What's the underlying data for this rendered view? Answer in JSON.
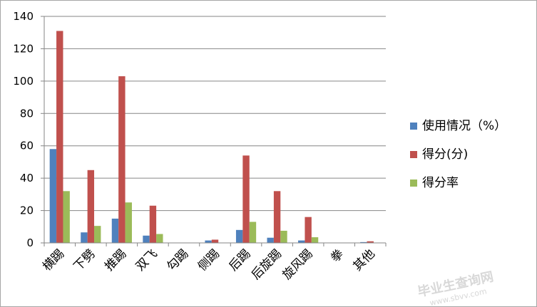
{
  "chart_data": {
    "type": "bar",
    "categories": [
      "横踢",
      "下劈",
      "推踢",
      "双飞",
      "勾踢",
      "侧踢",
      "后踢",
      "后旋踢",
      "旋风踢",
      "拳",
      "其他"
    ],
    "series": [
      {
        "name": "使用情况（%）",
        "color": "#4f81bd",
        "values": [
          58,
          6.5,
          15,
          4.5,
          0,
          1.5,
          8,
          3.2,
          1.5,
          0,
          0.5
        ]
      },
      {
        "name": "得分(分)",
        "color": "#c0504d",
        "values": [
          131,
          45,
          103,
          23,
          0,
          2,
          54,
          32,
          16,
          0,
          1
        ]
      },
      {
        "name": "得分率",
        "color": "#9bbb59",
        "values": [
          32,
          10.5,
          25,
          5.5,
          0,
          0,
          13,
          7.5,
          3.5,
          0,
          0
        ]
      }
    ],
    "title": "",
    "xlabel": "",
    "ylabel": "",
    "ylim": [
      0,
      140
    ],
    "yticks": [
      0,
      20,
      40,
      60,
      80,
      100,
      120,
      140
    ],
    "grid": true,
    "legend": "right"
  },
  "watermark": {
    "text": "毕业生查询网",
    "url": "www.sbvv.com"
  }
}
